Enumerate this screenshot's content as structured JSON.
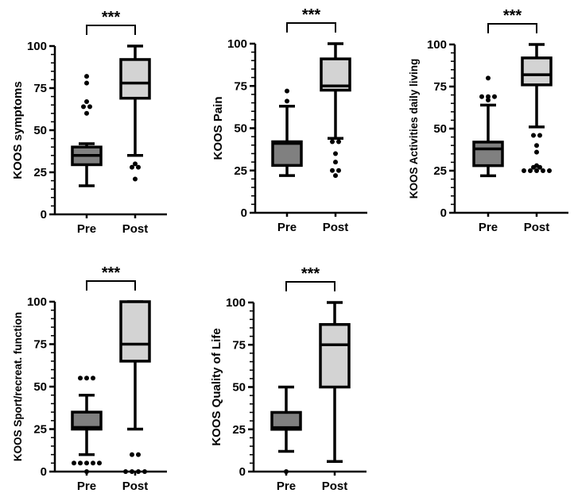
{
  "chart_data": [
    {
      "type": "box",
      "ylabel": "KOOS symptoms",
      "categories": [
        "Pre",
        "Post"
      ],
      "ylim": [
        0,
        100
      ],
      "yticks": [
        0,
        25,
        50,
        75,
        100
      ],
      "significance": "***",
      "boxes": [
        {
          "name": "Pre",
          "min": 17,
          "q1": 29.5,
          "median": 35,
          "q3": 40,
          "max": 42,
          "outliers": [
            82,
            78,
            67,
            64,
            64,
            60
          ]
        },
        {
          "name": "Post",
          "min": 35,
          "q1": 69,
          "median": 78,
          "q3": 92,
          "max": 100,
          "outliers": [
            30,
            28,
            28,
            21
          ]
        }
      ]
    },
    {
      "type": "box",
      "ylabel": "KOOS Pain",
      "categories": [
        "Pre",
        "Post"
      ],
      "ylim": [
        0,
        100
      ],
      "yticks": [
        0,
        25,
        50,
        75,
        100
      ],
      "significance": "***",
      "boxes": [
        {
          "name": "Pre",
          "min": 22,
          "q1": 28,
          "median": 41,
          "q3": 42,
          "max": 63,
          "outliers": [
            72,
            66
          ]
        },
        {
          "name": "Post",
          "min": 44,
          "q1": 72.5,
          "median": 75,
          "q3": 91,
          "max": 100,
          "outliers": [
            42,
            42,
            35,
            30,
            25,
            25,
            22
          ]
        }
      ]
    },
    {
      "type": "box",
      "ylabel": "KOOS Activities daily living",
      "categories": [
        "Pre",
        "Post"
      ],
      "ylim": [
        0,
        100
      ],
      "yticks": [
        0,
        25,
        50,
        75,
        100
      ],
      "significance": "***",
      "boxes": [
        {
          "name": "Pre",
          "min": 22,
          "q1": 28,
          "median": 38,
          "q3": 42,
          "max": 64,
          "outliers": [
            80,
            69,
            69,
            69,
            67
          ]
        },
        {
          "name": "Post",
          "min": 51,
          "q1": 76,
          "median": 82,
          "q3": 92,
          "max": 100,
          "outliers": [
            46,
            46,
            40,
            36,
            28,
            27,
            27,
            25,
            25,
            25,
            25,
            25
          ]
        }
      ]
    },
    {
      "type": "box",
      "ylabel": "KOOS Sport/recreat. function",
      "categories": [
        "Pre",
        "Post"
      ],
      "ylim": [
        0,
        100
      ],
      "yticks": [
        0,
        25,
        50,
        75,
        100
      ],
      "significance": "***",
      "boxes": [
        {
          "name": "Pre",
          "min": 10,
          "q1": 25,
          "median": 26,
          "q3": 35,
          "max": 45,
          "outliers": [
            55,
            55,
            55,
            5,
            5,
            5,
            5,
            5,
            0
          ]
        },
        {
          "name": "Post",
          "min": 25,
          "q1": 65,
          "median": 75,
          "q3": 100,
          "max": 100,
          "outliers": [
            10,
            10,
            0,
            0,
            0,
            0
          ]
        }
      ]
    },
    {
      "type": "box",
      "ylabel": "KOOS Quality of Life",
      "categories": [
        "Pre",
        "Post"
      ],
      "ylim": [
        0,
        100
      ],
      "yticks": [
        0,
        25,
        50,
        75,
        100
      ],
      "significance": "***",
      "boxes": [
        {
          "name": "Pre",
          "min": 12,
          "q1": 25,
          "median": 26,
          "q3": 35,
          "max": 50,
          "outliers": [
            0
          ]
        },
        {
          "name": "Post",
          "min": 6,
          "q1": 50,
          "median": 75,
          "q3": 87,
          "max": 100,
          "outliers": []
        }
      ]
    }
  ],
  "colors": {
    "pre": "#808080",
    "post": "#d3d3d3",
    "line": "#000000"
  }
}
